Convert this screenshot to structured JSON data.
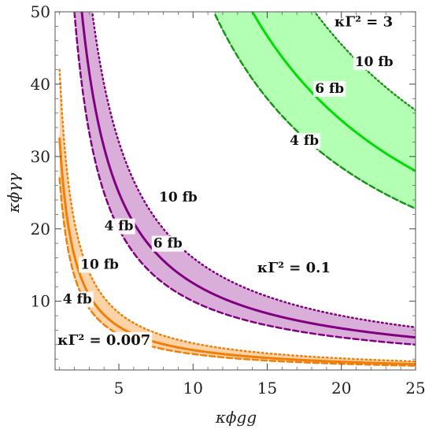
{
  "chart_data": {
    "type": "area",
    "xlabel": "κϕgg",
    "ylabel": "κϕγγ",
    "xlim": [
      0.7,
      25
    ],
    "ylim": [
      0.5,
      50
    ],
    "x_ticks": [
      5,
      10,
      15,
      20,
      25
    ],
    "y_ticks": [
      10,
      20,
      30,
      40,
      50
    ],
    "x_tick_labels": [
      "5",
      "10",
      "15",
      "20",
      "25"
    ],
    "y_tick_labels": [
      "10",
      "20",
      "30",
      "40",
      "50"
    ],
    "grid": false,
    "legend": "none",
    "colors": {
      "orange": "#f07f0a",
      "orange_fill": "#ffd3a8",
      "purple": "#800080",
      "purple_fill": "#d9aed9",
      "green": "#00dd00",
      "green_dark": "#119911",
      "green_fill": "#b3ffb3"
    },
    "series": [
      {
        "name": "κΓ² = 0.007",
        "color": "orange",
        "x_range": [
          1.0,
          25.0
        ],
        "curves": [
          {
            "label": "4 fb",
            "style": "dashed",
            "const": 27
          },
          {
            "label": "6 fb",
            "style": "solid",
            "const": 32.5
          },
          {
            "label": "10 fb",
            "style": "dotted",
            "const": 42
          }
        ]
      },
      {
        "name": "κΓ² = 0.1",
        "color": "purple",
        "x_range": [
          2.0,
          25.0
        ],
        "curves": [
          {
            "label": "4 fb",
            "style": "dashed",
            "const": 100
          },
          {
            "label": "6 fb",
            "style": "solid",
            "const": 125
          },
          {
            "label": "10 fb",
            "style": "dotted",
            "const": 160
          }
        ]
      },
      {
        "name": "κΓ² = 3",
        "color": "green",
        "x_range": [
          11.5,
          25.0
        ],
        "curves": [
          {
            "label": "4 fb",
            "style": "dashed",
            "const": 570
          },
          {
            "label": "6 fb",
            "style": "solid",
            "const": 700
          },
          {
            "label": "10 fb",
            "style": "dotted",
            "const": 910
          }
        ]
      }
    ],
    "annotations": [
      {
        "text": "κΓ² = 3",
        "x": 21.5,
        "y": 48.0
      },
      {
        "text": "10 fb",
        "x": 22.2,
        "y": 42.5
      },
      {
        "text": "6 fb",
        "x": 19.2,
        "y": 38.8
      },
      {
        "text": "4 fb",
        "x": 17.5,
        "y": 31.6
      },
      {
        "text": "10 fb",
        "x": 9.0,
        "y": 23.8
      },
      {
        "text": "4 fb",
        "x": 5.0,
        "y": 19.8
      },
      {
        "text": "6 fb",
        "x": 8.3,
        "y": 17.4
      },
      {
        "text": "κΓ² = 0.1",
        "x": 16.8,
        "y": 14.0
      },
      {
        "text": "10 fb",
        "x": 3.7,
        "y": 14.5
      },
      {
        "text": "4 fb",
        "x": 2.2,
        "y": 9.7
      },
      {
        "text": "κΓ² = 0.007",
        "x": 4.0,
        "y": 4.0
      }
    ]
  }
}
